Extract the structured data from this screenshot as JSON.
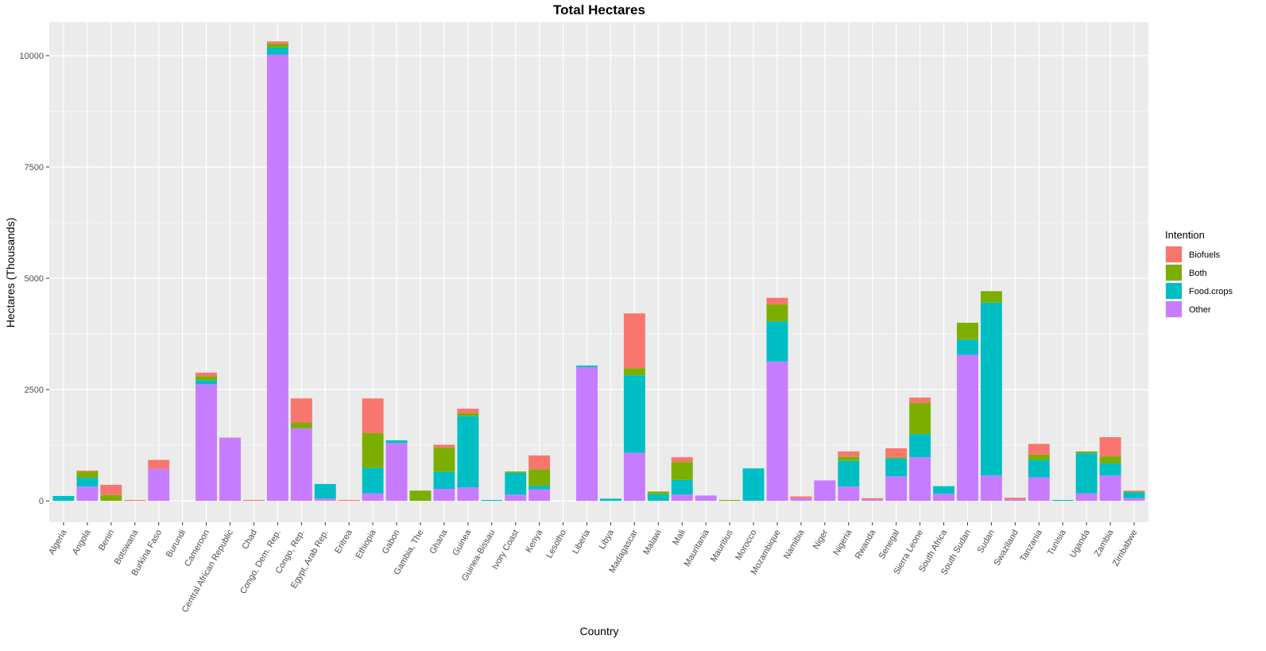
{
  "chart_data": {
    "type": "bar",
    "stacked": true,
    "title": "Total Hectares",
    "xlabel": "Country",
    "ylabel": "Hectares (Thousands)",
    "ylim": [
      -480,
      10750
    ],
    "yticks": [
      0,
      2500,
      5000,
      7500,
      10000
    ],
    "legend": {
      "title": "Intention",
      "position": "right",
      "entries": [
        "Biofuels",
        "Both",
        "Food.crops",
        "Other"
      ]
    },
    "colors": {
      "Biofuels": "#F8766D",
      "Both": "#7CAE00",
      "Food.crops": "#00BFC4",
      "Other": "#C77CFF"
    },
    "stack_order_bottom_to_top": [
      "Other",
      "Food.crops",
      "Both",
      "Biofuels"
    ],
    "categories": [
      "Algeria",
      "Angola",
      "Benin",
      "Botswana",
      "Burkina Faso",
      "Burundi",
      "Cameroon",
      "Central African Republic",
      "Chad",
      "Congo, Dem. Rep.",
      "Congo, Rep.",
      "Egypt, Arab Rep.",
      "Eritrea",
      "Ethiopia",
      "Gabon",
      "Gambia, The",
      "Ghana",
      "Guinea",
      "Guinea-Bissau",
      "Ivory Coast",
      "Kenya",
      "Lesotho",
      "Liberia",
      "Libya",
      "Madagascar",
      "Malawi",
      "Mali",
      "Mauritania",
      "Mauritius",
      "Morocco",
      "Mozambique",
      "Namibia",
      "Niger",
      "Nigeria",
      "Rwanda",
      "Senegal",
      "Sierra Leone",
      "South Africa",
      "South Sudan",
      "Sudan",
      "Swaziland",
      "Tanzania",
      "Tunisia",
      "Uganda",
      "Zambia",
      "Zimbabwe"
    ],
    "series": [
      {
        "name": "Other",
        "values": [
          0,
          320,
          0,
          0,
          720,
          0,
          2620,
          1420,
          0,
          10020,
          1630,
          50,
          0,
          170,
          1300,
          0,
          270,
          300,
          0,
          140,
          260,
          0,
          3000,
          0,
          1080,
          0,
          140,
          120,
          0,
          0,
          3130,
          60,
          460,
          320,
          30,
          550,
          980,
          160,
          3280,
          570,
          30,
          530,
          0,
          170,
          570,
          60
        ]
      },
      {
        "name": "Food.crops",
        "values": [
          110,
          200,
          0,
          0,
          0,
          0,
          90,
          0,
          0,
          160,
          0,
          330,
          0,
          570,
          60,
          0,
          380,
          1600,
          20,
          490,
          80,
          0,
          40,
          50,
          1740,
          150,
          330,
          0,
          0,
          730,
          900,
          0,
          0,
          580,
          0,
          400,
          520,
          170,
          340,
          3880,
          0,
          390,
          20,
          900,
          270,
          130
        ]
      },
      {
        "name": "Both",
        "values": [
          0,
          140,
          130,
          0,
          0,
          0,
          90,
          0,
          0,
          90,
          130,
          0,
          0,
          780,
          0,
          230,
          540,
          70,
          0,
          30,
          370,
          0,
          0,
          0,
          160,
          60,
          400,
          0,
          20,
          0,
          380,
          0,
          0,
          90,
          0,
          30,
          700,
          0,
          380,
          260,
          0,
          120,
          0,
          40,
          160,
          20
        ]
      },
      {
        "name": "Biofuels",
        "values": [
          0,
          20,
          230,
          20,
          200,
          0,
          80,
          0,
          20,
          50,
          540,
          0,
          20,
          780,
          0,
          0,
          70,
          100,
          0,
          0,
          310,
          0,
          0,
          0,
          1230,
          0,
          110,
          0,
          0,
          0,
          150,
          40,
          0,
          120,
          30,
          200,
          120,
          0,
          0,
          0,
          40,
          240,
          0,
          0,
          430,
          20
        ]
      }
    ]
  }
}
